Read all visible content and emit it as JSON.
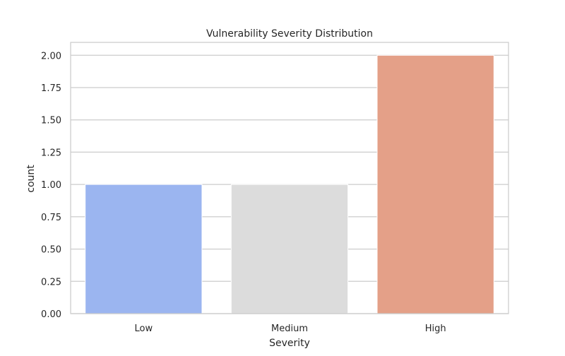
{
  "chart_data": {
    "type": "bar",
    "title": "Vulnerability Severity Distribution",
    "xlabel": "Severity",
    "ylabel": "count",
    "categories": [
      "Low",
      "Medium",
      "High"
    ],
    "values": [
      1,
      1,
      2
    ],
    "colors": [
      "#9bb5f0",
      "#dcdcdc",
      "#e4a088"
    ],
    "ylim": [
      0,
      2.1
    ],
    "yticks": [
      "0.00",
      "0.25",
      "0.50",
      "0.75",
      "1.00",
      "1.25",
      "1.50",
      "1.75",
      "2.00"
    ],
    "grid": "horizontal",
    "style": {
      "grid_color": "#cccccc",
      "frame_color": "#cccccc",
      "bar_edge_color": "#ffffff"
    }
  }
}
